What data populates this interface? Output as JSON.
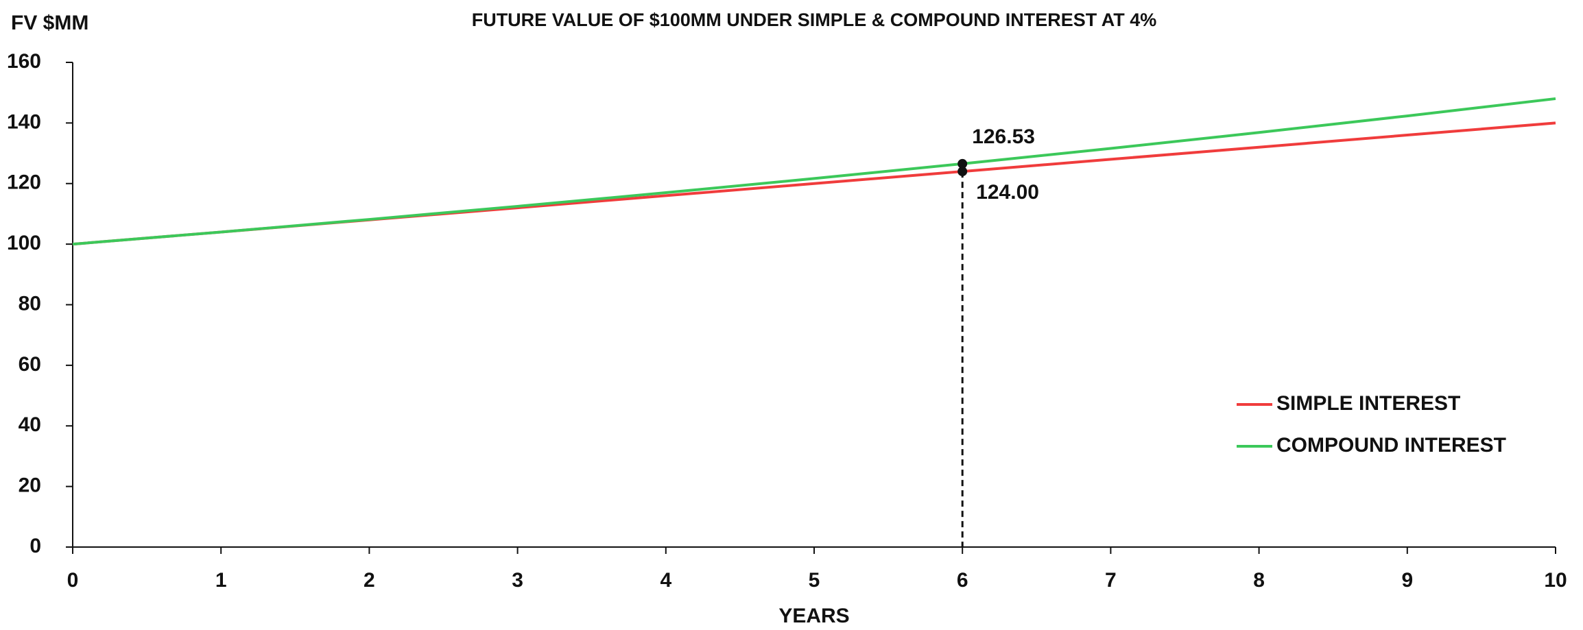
{
  "chart_data": {
    "type": "line",
    "title": "FUTURE VALUE OF $100MM UNDER SIMPLE & COMPOUND INTEREST AT 4%",
    "y_label": "FV $MM",
    "x_label": "YEARS",
    "x": [
      0,
      1,
      2,
      3,
      4,
      5,
      6,
      7,
      8,
      9,
      10
    ],
    "series": [
      {
        "name": "SIMPLE INTEREST",
        "color": "#f03c3c",
        "values": [
          100,
          104,
          108,
          112,
          116,
          120,
          124,
          128,
          132,
          136,
          140
        ]
      },
      {
        "name": "COMPOUND INTEREST",
        "color": "#3cc85a",
        "values": [
          100,
          104,
          108.16,
          112.49,
          116.99,
          121.67,
          126.53,
          131.59,
          136.86,
          142.33,
          148.02
        ]
      }
    ],
    "annotations": [
      {
        "x": 6,
        "value": 126.53,
        "label": "126.53"
      },
      {
        "x": 6,
        "value": 124,
        "label": "124.00"
      }
    ],
    "xlim": [
      0,
      10
    ],
    "xticks": [
      0,
      1,
      2,
      3,
      4,
      5,
      6,
      7,
      8,
      9,
      10
    ],
    "ylim": [
      0,
      160
    ],
    "yticks": [
      0,
      20,
      40,
      60,
      80,
      100,
      120,
      140,
      160
    ],
    "grid": false,
    "legend": "lower right"
  }
}
